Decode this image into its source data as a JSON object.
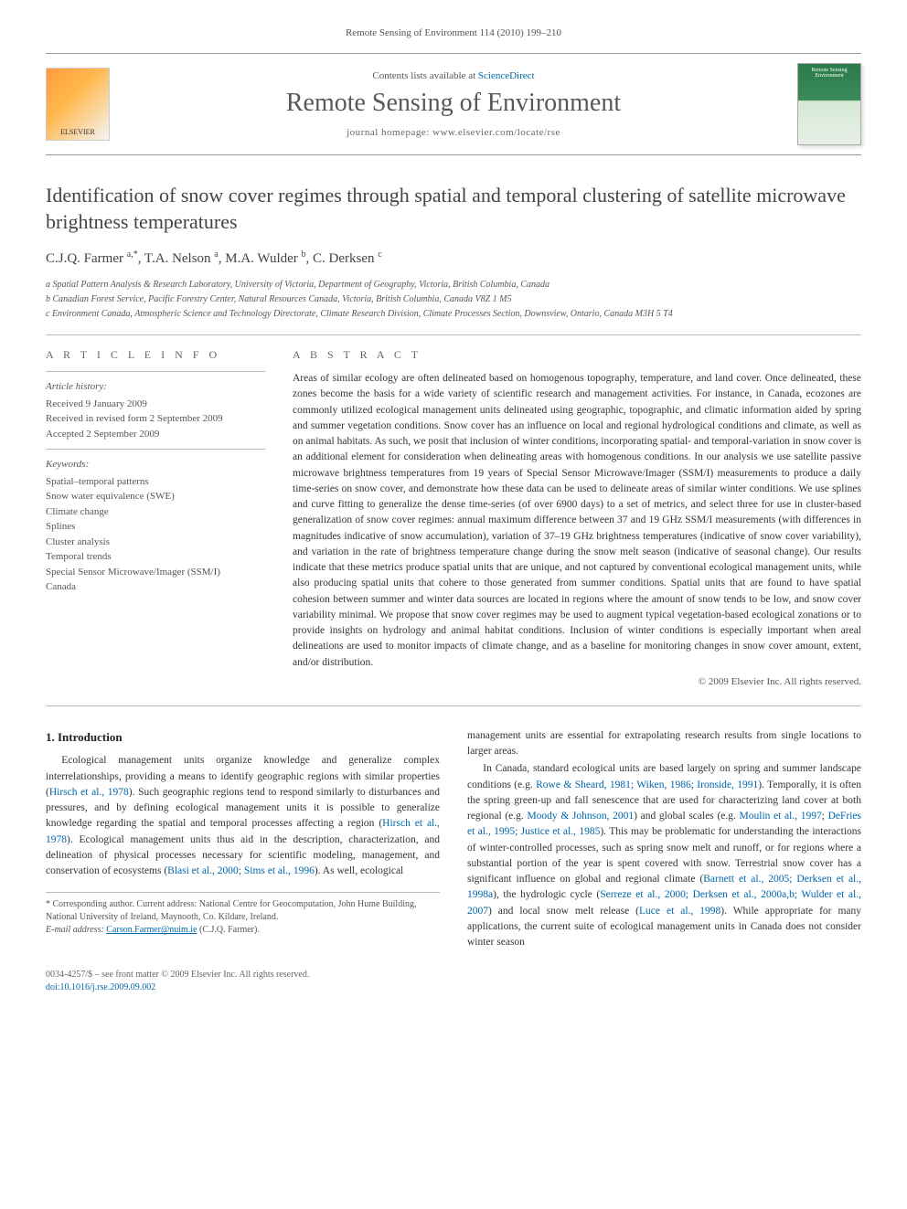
{
  "running_header": "Remote Sensing of Environment 114 (2010) 199–210",
  "masthead": {
    "contents_prefix": "Contents lists available at ",
    "contents_link": "ScienceDirect",
    "journal_name": "Remote Sensing of Environment",
    "homepage_prefix": "journal homepage: ",
    "homepage_url": "www.elsevier.com/locate/rse",
    "publisher_logo_label": "ELSEVIER",
    "cover_label": "Remote Sensing Environment"
  },
  "article": {
    "title": "Identification of snow cover regimes through spatial and temporal clustering of satellite microwave brightness temperatures",
    "authors_html": "C.J.Q. Farmer <sup>a,*</sup>, T.A. Nelson <sup>a</sup>, M.A. Wulder <sup>b</sup>, C. Derksen <sup>c</sup>",
    "affiliations": [
      "a Spatial Pattern Analysis & Research Laboratory, University of Victoria, Department of Geography, Victoria, British Columbia, Canada",
      "b Canadian Forest Service, Pacific Forestry Center, Natural Resources Canada, Victoria, British Columbia, Canada V8Z 1 M5",
      "c Environment Canada, Atmospheric Science and Technology Directorate, Climate Research Division, Climate Processes Section, Downsview, Ontario, Canada M3H 5 T4"
    ]
  },
  "article_info": {
    "heading": "a r t i c l e   i n f o",
    "history_label": "Article history:",
    "history": [
      "Received 9 January 2009",
      "Received in revised form 2 September 2009",
      "Accepted 2 September 2009"
    ],
    "keywords_label": "Keywords:",
    "keywords": [
      "Spatial–temporal patterns",
      "Snow water equivalence (SWE)",
      "Climate change",
      "Splines",
      "Cluster analysis",
      "Temporal trends",
      "Special Sensor Microwave/Imager (SSM/I)",
      "Canada"
    ]
  },
  "abstract": {
    "heading": "a b s t r a c t",
    "text": "Areas of similar ecology are often delineated based on homogenous topography, temperature, and land cover. Once delineated, these zones become the basis for a wide variety of scientific research and management activities. For instance, in Canada, ecozones are commonly utilized ecological management units delineated using geographic, topographic, and climatic information aided by spring and summer vegetation conditions. Snow cover has an influence on local and regional hydrological conditions and climate, as well as on animal habitats. As such, we posit that inclusion of winter conditions, incorporating spatial- and temporal-variation in snow cover is an additional element for consideration when delineating areas with homogenous conditions. In our analysis we use satellite passive microwave brightness temperatures from 19 years of Special Sensor Microwave/Imager (SSM/I) measurements to produce a daily time-series on snow cover, and demonstrate how these data can be used to delineate areas of similar winter conditions. We use splines and curve fitting to generalize the dense time-series (of over 6900 days) to a set of metrics, and select three for use in cluster-based generalization of snow cover regimes: annual maximum difference between 37 and 19 GHz SSM/I measurements (with differences in magnitudes indicative of snow accumulation), variation of 37–19 GHz brightness temperatures (indicative of snow cover variability), and variation in the rate of brightness temperature change during the snow melt season (indicative of seasonal change). Our results indicate that these metrics produce spatial units that are unique, and not captured by conventional ecological management units, while also producing spatial units that cohere to those generated from summer conditions. Spatial units that are found to have spatial cohesion between summer and winter data sources are located in regions where the amount of snow tends to be low, and snow cover variability minimal. We propose that snow cover regimes may be used to augment typical vegetation-based ecological zonations or to provide insights on hydrology and animal habitat conditions. Inclusion of winter conditions is especially important when areal delineations are used to monitor impacts of climate change, and as a baseline for monitoring changes in snow cover amount, extent, and/or distribution.",
    "copyright": "© 2009 Elsevier Inc. All rights reserved."
  },
  "body": {
    "intro_heading": "1. Introduction",
    "left_paras": [
      "Ecological management units organize knowledge and generalize complex interrelationships, providing a means to identify geographic regions with similar properties (Hirsch et al., 1978). Such geographic regions tend to respond similarly to disturbances and pressures, and by defining ecological management units it is possible to generalize knowledge regarding the spatial and temporal processes affecting a region (Hirsch et al., 1978). Ecological management units thus aid in the description, characterization, and delineation of physical processes necessary for scientific modeling, management, and conservation of ecosystems (Blasi et al., 2000; Sims et al., 1996). As well, ecological"
    ],
    "right_paras": [
      "management units are essential for extrapolating research results from single locations to larger areas.",
      "In Canada, standard ecological units are based largely on spring and summer landscape conditions (e.g. Rowe & Sheard, 1981; Wiken, 1986; Ironside, 1991). Temporally, it is often the spring green-up and fall senescence that are used for characterizing land cover at both regional (e.g. Moody & Johnson, 2001) and global scales (e.g. Moulin et al., 1997; DeFries et al., 1995; Justice et al., 1985). This may be problematic for understanding the interactions of winter-controlled processes, such as spring snow melt and runoff, or for regions where a substantial portion of the year is spent covered with snow. Terrestrial snow cover has a significant influence on global and regional climate (Barnett et al., 2005; Derksen et al., 1998a), the hydrologic cycle (Serreze et al., 2000; Derksen et al., 2000a,b; Wulder et al., 2007) and local snow melt release (Luce et al., 1998). While appropriate for many applications, the current suite of ecological management units in Canada does not consider winter season"
    ],
    "inline_refs": {
      "r1": "Hirsch et al., 1978",
      "r2": "Hirsch et al., 1978",
      "r3": "Blasi et al., 2000; Sims et al., 1996",
      "r4": "Rowe & Sheard, 1981; Wiken, 1986; Ironside, 1991",
      "r5": "Moody & Johnson, 2001",
      "r6": "Moulin et al., 1997; DeFries et al., 1995; Justice et al., 1985",
      "r7": "Barnett et al., 2005; Derksen et al., 1998a",
      "r8": "Serreze et al., 2000; Derksen et al., 2000a,b; Wulder et al., 2007",
      "r9": "Luce et al., 1998"
    }
  },
  "footnote": {
    "corresponding": "* Corresponding author. Current address: National Centre for Geocomputation, John Hume Building, National University of Ireland, Maynooth, Co. Kildare, Ireland.",
    "email_label": "E-mail address: ",
    "email": "Carson.Farmer@nuim.ie",
    "email_suffix": " (C.J.Q. Farmer)."
  },
  "footer": {
    "issn_line": "0034-4257/$ – see front matter © 2009 Elsevier Inc. All rights reserved.",
    "doi_line": "doi:10.1016/j.rse.2009.09.002"
  },
  "colors": {
    "link": "#0066aa",
    "text": "#333333",
    "muted": "#555555",
    "rule": "#bbbbbb"
  },
  "typography": {
    "base_font": "Georgia, 'Times New Roman', serif",
    "title_size_pt": 22,
    "journal_size_pt": 28,
    "body_size_pt": 11.5,
    "small_size_pt": 10
  }
}
